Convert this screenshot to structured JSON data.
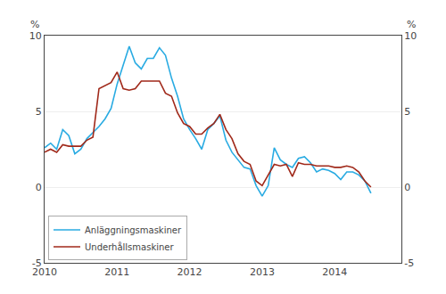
{
  "chart_data": {
    "type": "line",
    "ylabel": "%",
    "y2label": "%",
    "x": [
      2010.0,
      2010.0833333333333,
      2010.1666666666667,
      2010.25,
      2010.3333333333333,
      2010.4166666666667,
      2010.5,
      2010.5833333333333,
      2010.6666666666667,
      2010.75,
      2010.8333333333333,
      2010.9166666666667,
      2011.0,
      2011.0833333333333,
      2011.1666666666667,
      2011.25,
      2011.3333333333333,
      2011.4166666666667,
      2011.5,
      2011.5833333333333,
      2011.6666666666667,
      2011.75,
      2011.8333333333333,
      2011.9166666666667,
      2012.0,
      2012.0833333333333,
      2012.1666666666667,
      2012.25,
      2012.3333333333333,
      2012.4166666666667,
      2012.5,
      2012.5833333333333,
      2012.6666666666667,
      2012.75,
      2012.8333333333333,
      2012.9166666666667,
      2013.0,
      2013.0833333333333,
      2013.1666666666667,
      2013.25,
      2013.3333333333333,
      2013.4166666666667,
      2013.5,
      2013.5833333333333,
      2013.6666666666667,
      2013.75,
      2013.8333333333333,
      2013.9166666666667,
      2014.0,
      2014.0833333333333,
      2014.1666666666667,
      2014.25,
      2014.3333333333333,
      2014.4166666666667,
      2014.5
    ],
    "series": [
      {
        "name": "Anläggningsmaskiner",
        "color": "#29ABE2",
        "values": [
          2.6,
          2.9,
          2.5,
          3.8,
          3.4,
          2.2,
          2.5,
          3.2,
          3.6,
          4.0,
          4.5,
          5.2,
          6.8,
          8.0,
          9.3,
          8.2,
          7.8,
          8.5,
          8.5,
          9.2,
          8.7,
          7.2,
          6.0,
          4.5,
          3.8,
          3.2,
          2.5,
          3.8,
          4.2,
          4.7,
          3.1,
          2.3,
          1.8,
          1.3,
          1.2,
          0.1,
          -0.6,
          0.1,
          2.6,
          1.8,
          1.5,
          1.3,
          1.9,
          2.0,
          1.6,
          1.0,
          1.2,
          1.1,
          0.9,
          0.5,
          1.0,
          1.0,
          0.8,
          0.4,
          -0.4
        ]
      },
      {
        "name": "Underhållsmaskiner",
        "color": "#A0291A",
        "values": [
          2.3,
          2.5,
          2.3,
          2.8,
          2.7,
          2.7,
          2.7,
          3.1,
          3.3,
          6.5,
          6.7,
          6.9,
          7.6,
          6.5,
          6.4,
          6.5,
          7.0,
          7.0,
          7.0,
          7.0,
          6.2,
          6.0,
          4.9,
          4.2,
          4.0,
          3.5,
          3.5,
          3.9,
          4.2,
          4.8,
          3.8,
          3.2,
          2.2,
          1.7,
          1.5,
          0.4,
          0.1,
          0.8,
          1.5,
          1.4,
          1.5,
          0.7,
          1.6,
          1.5,
          1.5,
          1.4,
          1.4,
          1.4,
          1.3,
          1.3,
          1.4,
          1.3,
          1.0,
          0.4,
          0.0
        ]
      }
    ],
    "xlim": [
      2010.0,
      2014.92
    ],
    "xticks": [
      2010,
      2011,
      2012,
      2013,
      2014
    ],
    "ylim": [
      -5,
      10
    ],
    "yticks": [
      -5,
      0,
      5,
      10
    ],
    "y2lim": [
      -5,
      10
    ],
    "y2ticks": [
      -5,
      0,
      5,
      10
    ],
    "grid": true,
    "legend": "lower left"
  }
}
